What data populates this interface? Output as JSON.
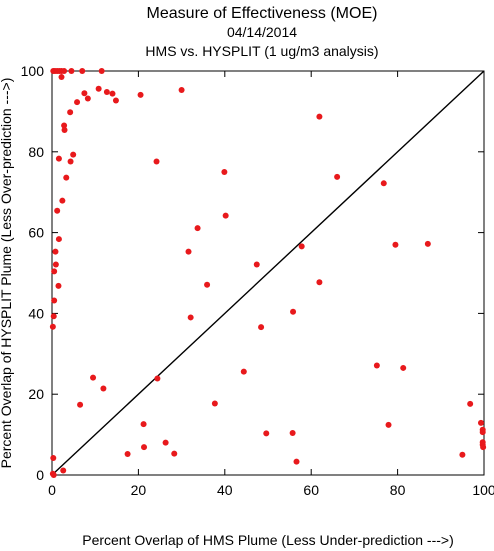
{
  "chart_data": {
    "type": "scatter",
    "title": "Measure of Effectiveness (MOE)",
    "subtitle_date": "04/14/2014",
    "subtitle_comparison": "HMS vs. HYSPLIT  (1 ug/m3 analysis)",
    "xlabel": "Percent Overlap of HMS Plume (Less Under-prediction --->)",
    "ylabel": "Percent Overlap of HYSPLIT Plume (Less Over-prediction --->)",
    "xlim": [
      0,
      100
    ],
    "ylim": [
      0,
      100
    ],
    "x_ticks": [
      0,
      20,
      40,
      60,
      80,
      100
    ],
    "y_ticks": [
      0,
      20,
      40,
      60,
      80,
      100
    ],
    "reference_line": "y = x",
    "grid": false,
    "point_color": "#e8191c",
    "line_color": "#000000",
    "points": [
      [
        0.3,
        100
      ],
      [
        0.7,
        100
      ],
      [
        1.2,
        100
      ],
      [
        1.7,
        100
      ],
      [
        2.2,
        100
      ],
      [
        2.8,
        100
      ],
      [
        4.5,
        100
      ],
      [
        7.0,
        100
      ],
      [
        11.5,
        100
      ],
      [
        2.2,
        98.5
      ],
      [
        5.8,
        92.3
      ],
      [
        7.5,
        94.5
      ],
      [
        8.3,
        93.2
      ],
      [
        10.8,
        95.6
      ],
      [
        12.7,
        94.8
      ],
      [
        14.0,
        94.4
      ],
      [
        14.8,
        92.7
      ],
      [
        20.5,
        94.1
      ],
      [
        30.0,
        95.3
      ],
      [
        4.2,
        89.8
      ],
      [
        2.8,
        86.5
      ],
      [
        2.9,
        85.4
      ],
      [
        1.6,
        78.3
      ],
      [
        4.3,
        77.6
      ],
      [
        4.9,
        79.3
      ],
      [
        3.3,
        73.6
      ],
      [
        2.4,
        67.9
      ],
      [
        1.2,
        65.4
      ],
      [
        1.6,
        58.4
      ],
      [
        0.8,
        55.3
      ],
      [
        0.9,
        52.1
      ],
      [
        0.5,
        50.4
      ],
      [
        1.5,
        46.8
      ],
      [
        0.5,
        43.2
      ],
      [
        0.4,
        39.3
      ],
      [
        0.2,
        36.7
      ],
      [
        0.3,
        4.2
      ],
      [
        0.2,
        0.3
      ],
      [
        0.4,
        0.0
      ],
      [
        2.6,
        1.1
      ],
      [
        6.5,
        17.4
      ],
      [
        9.5,
        24.1
      ],
      [
        11.9,
        21.4
      ],
      [
        24.4,
        23.9
      ],
      [
        17.5,
        5.2
      ],
      [
        21.2,
        12.6
      ],
      [
        21.3,
        6.9
      ],
      [
        26.3,
        8.0
      ],
      [
        28.3,
        5.3
      ],
      [
        24.2,
        77.6
      ],
      [
        31.6,
        55.3
      ],
      [
        32.1,
        39.0
      ],
      [
        33.7,
        61.1
      ],
      [
        35.9,
        47.1
      ],
      [
        37.7,
        17.7
      ],
      [
        39.9,
        75.0
      ],
      [
        40.2,
        64.2
      ],
      [
        44.4,
        25.6
      ],
      [
        47.4,
        52.1
      ],
      [
        48.4,
        36.6
      ],
      [
        49.6,
        10.3
      ],
      [
        55.7,
        10.4
      ],
      [
        55.8,
        40.4
      ],
      [
        56.6,
        3.3
      ],
      [
        57.8,
        56.6
      ],
      [
        61.9,
        88.7
      ],
      [
        61.9,
        47.7
      ],
      [
        66.0,
        73.8
      ],
      [
        75.2,
        27.1
      ],
      [
        76.8,
        72.2
      ],
      [
        77.9,
        12.4
      ],
      [
        79.5,
        57.0
      ],
      [
        81.3,
        26.5
      ],
      [
        87.0,
        57.2
      ],
      [
        95.0,
        5.0
      ],
      [
        96.8,
        17.6
      ],
      [
        99.3,
        12.9
      ],
      [
        99.7,
        11.2
      ],
      [
        99.7,
        10.6
      ],
      [
        99.7,
        8.1
      ],
      [
        99.7,
        7.5
      ],
      [
        99.8,
        6.9
      ]
    ]
  }
}
